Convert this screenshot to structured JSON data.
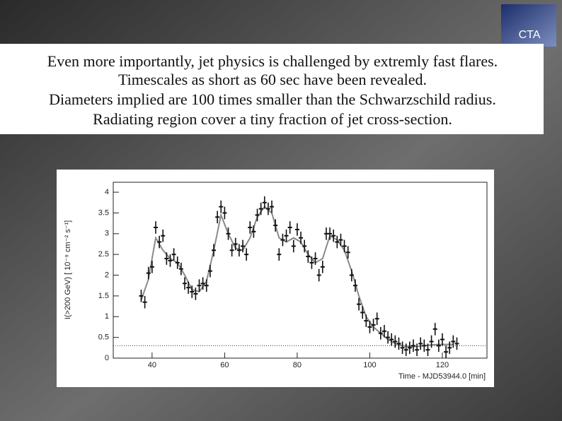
{
  "slide": {
    "logo": "CTA",
    "lines": [
      "Even more importantly,  jet physics is challenged by extremly fast flares.",
      "Timescales as short as 60 sec have been revealed.",
      "Diameters implied are 100 times smaller than the Schwarzschild radius.",
      "Radiating region cover a tiny fraction of jet cross-section."
    ]
  },
  "chart_data": {
    "type": "scatter",
    "x_label": "Time - MJD53944.0 [min]",
    "y_label": "I(>200 GeV) [ 10⁻⁹ cm⁻² s⁻¹]",
    "xlim": [
      29.3,
      132.3
    ],
    "ylim": [
      0,
      4.24
    ],
    "xticks": [
      40,
      60,
      80,
      100,
      120
    ],
    "yticks": [
      0,
      0.5,
      1,
      1.5,
      2,
      2.5,
      3,
      3.5,
      4
    ],
    "color": "#111111",
    "error": 0.15,
    "x": [
      37,
      38,
      39,
      40,
      41,
      42,
      43,
      44,
      45,
      46,
      47,
      48,
      49,
      50,
      51,
      52,
      53,
      54,
      55,
      56,
      57,
      58,
      59,
      60,
      61,
      62,
      63,
      64,
      65,
      66,
      67,
      68,
      69,
      70,
      71,
      72,
      73,
      74,
      75,
      76,
      77,
      78,
      79,
      80,
      81,
      82,
      83,
      84,
      85,
      86,
      87,
      88,
      89,
      90,
      91,
      92,
      93,
      94,
      95,
      96,
      97,
      98,
      99,
      100,
      101,
      102,
      103,
      104,
      105,
      106,
      107,
      108,
      109,
      110,
      111,
      112,
      113,
      114,
      115,
      116,
      117,
      118,
      119,
      120,
      121,
      122,
      123,
      124
    ],
    "values": [
      1.5,
      1.35,
      2.05,
      2.2,
      3.15,
      2.8,
      2.95,
      2.4,
      2.35,
      2.5,
      2.3,
      2.15,
      1.8,
      1.7,
      1.6,
      1.55,
      1.75,
      1.8,
      1.75,
      2.1,
      2.6,
      3.4,
      3.65,
      3.5,
      3.0,
      2.6,
      2.75,
      2.6,
      2.7,
      2.5,
      3.15,
      3.05,
      3.45,
      3.6,
      3.75,
      3.6,
      3.65,
      3.2,
      2.5,
      2.85,
      2.95,
      3.15,
      2.7,
      3.1,
      2.9,
      2.7,
      2.45,
      2.3,
      2.4,
      2.0,
      2.2,
      3.0,
      3.0,
      2.95,
      2.8,
      2.85,
      2.7,
      2.55,
      2.0,
      1.75,
      1.3,
      1.1,
      0.9,
      0.75,
      0.8,
      0.95,
      0.6,
      0.65,
      0.5,
      0.45,
      0.4,
      0.35,
      0.25,
      0.2,
      0.25,
      0.3,
      0.2,
      0.35,
      0.3,
      0.2,
      0.4,
      0.7,
      0.3,
      0.45,
      0.15,
      0.25,
      0.4,
      0.35
    ],
    "fit": {
      "color": "#8a8a8a",
      "x": [
        37,
        39,
        41,
        43,
        45,
        47,
        49,
        51,
        53,
        55,
        57,
        59,
        61,
        63,
        65,
        67,
        69,
        71,
        73,
        75,
        77,
        79,
        81,
        83,
        85,
        87,
        89,
        91,
        93,
        95,
        97,
        99,
        101,
        103,
        105,
        107,
        109,
        111,
        113,
        115,
        117,
        119,
        121,
        123
      ],
      "values": [
        1.4,
        1.9,
        2.9,
        2.6,
        2.4,
        2.3,
        2.0,
        1.65,
        1.6,
        1.85,
        2.6,
        3.45,
        3.0,
        2.65,
        2.6,
        2.9,
        3.4,
        3.65,
        3.5,
        2.9,
        2.8,
        2.9,
        2.8,
        2.5,
        2.3,
        2.4,
        2.95,
        2.85,
        2.6,
        2.1,
        1.5,
        1.0,
        0.75,
        0.6,
        0.45,
        0.35,
        0.3,
        0.28,
        0.28,
        0.3,
        0.32,
        0.33,
        0.33,
        0.33
      ]
    },
    "baseline": 0.3
  }
}
